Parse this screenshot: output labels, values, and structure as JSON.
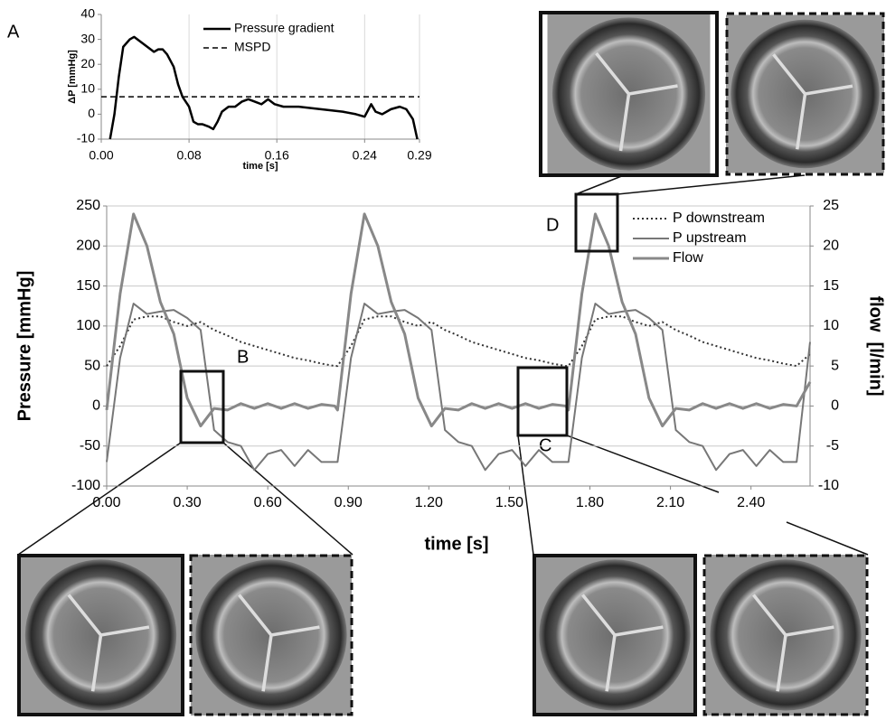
{
  "panel_labels": [
    "A",
    "B",
    "C",
    "D"
  ],
  "chart_data": [
    {
      "type": "line",
      "xlabel": "time [s]",
      "ylabel": "ΔP [mmHg]",
      "xlim": [
        0,
        0.29
      ],
      "ylim": [
        -10,
        40
      ],
      "xticks": [
        {
          "value": 0,
          "label": "0.00"
        },
        {
          "value": 0.08,
          "label": "0.08"
        },
        {
          "value": 0.16,
          "label": "0.16"
        },
        {
          "value": 0.24,
          "label": "0.24"
        },
        {
          "value": 0.29,
          "label": "0.29"
        }
      ],
      "yticks": [
        -10,
        0,
        10,
        20,
        30,
        40
      ],
      "grid": "x",
      "legend": "top-center",
      "series": [
        {
          "name": "Pressure gradient",
          "color": "#000000",
          "style": "solid",
          "x": [
            0.008,
            0.012,
            0.016,
            0.02,
            0.026,
            0.03,
            0.036,
            0.042,
            0.048,
            0.052,
            0.056,
            0.06,
            0.066,
            0.07,
            0.074,
            0.08,
            0.084,
            0.088,
            0.092,
            0.098,
            0.102,
            0.106,
            0.11,
            0.116,
            0.122,
            0.128,
            0.134,
            0.14,
            0.146,
            0.152,
            0.158,
            0.166,
            0.18,
            0.2,
            0.22,
            0.232,
            0.24,
            0.246,
            0.25,
            0.256,
            0.264,
            0.272,
            0.278,
            0.284,
            0.288
          ],
          "values": [
            -10,
            0,
            15,
            27,
            30,
            31,
            29,
            27,
            25,
            26,
            26,
            24,
            19,
            12,
            7,
            3,
            -3,
            -4,
            -4,
            -5,
            -6,
            -3,
            1,
            3,
            3,
            5,
            6,
            5,
            4,
            6,
            4,
            3,
            3,
            2,
            1,
            0,
            -1,
            4,
            1,
            0,
            2,
            3,
            2,
            -2,
            -10
          ]
        },
        {
          "name": "MSPD",
          "color": "#000000",
          "style": "dashed",
          "x": [
            0,
            0.29
          ],
          "values": [
            7,
            7
          ]
        }
      ]
    },
    {
      "type": "line",
      "xlabel": "time [s]",
      "ylabel": "Pressure [mmHg]",
      "y2label": "flow  [l/min]",
      "xlim": [
        0,
        2.62
      ],
      "ylim": [
        -100,
        250
      ],
      "y2lim": [
        -10,
        25
      ],
      "xticks": [
        {
          "value": 0,
          "label": "0.00"
        },
        {
          "value": 0.3,
          "label": "0.30"
        },
        {
          "value": 0.6,
          "label": "0.60"
        },
        {
          "value": 0.9,
          "label": "0.90"
        },
        {
          "value": 1.2,
          "label": "1.20"
        },
        {
          "value": 1.5,
          "label": "1.50"
        },
        {
          "value": 1.8,
          "label": "1.80"
        },
        {
          "value": 2.1,
          "label": "2.10"
        },
        {
          "value": 2.4,
          "label": "2.40"
        }
      ],
      "yticks": [
        -100,
        -50,
        0,
        50,
        100,
        150,
        200,
        250
      ],
      "y2ticks": [
        -10,
        -5,
        0,
        5,
        10,
        15,
        20,
        25
      ],
      "grid": "y",
      "legend": "top-right",
      "x": [
        0,
        0.05,
        0.1,
        0.15,
        0.2,
        0.25,
        0.3,
        0.35,
        0.4,
        0.45,
        0.5,
        0.55,
        0.6,
        0.65,
        0.7,
        0.75,
        0.8,
        0.85,
        0.86,
        0.91,
        0.96,
        1.01,
        1.06,
        1.11,
        1.16,
        1.21,
        1.26,
        1.31,
        1.36,
        1.41,
        1.46,
        1.51,
        1.56,
        1.61,
        1.66,
        1.71,
        1.72,
        1.77,
        1.82,
        1.87,
        1.92,
        1.97,
        2.02,
        2.07,
        2.12,
        2.17,
        2.22,
        2.27,
        2.32,
        2.37,
        2.42,
        2.47,
        2.52,
        2.57,
        2.62
      ],
      "series": [
        {
          "name": "P downstream",
          "color": "#333333",
          "style": "dotted",
          "values": [
            50,
            75,
            108,
            112,
            112,
            105,
            100,
            105,
            95,
            88,
            80,
            75,
            70,
            65,
            60,
            57,
            53,
            50,
            50,
            75,
            108,
            112,
            112,
            105,
            100,
            105,
            95,
            88,
            80,
            75,
            70,
            65,
            60,
            57,
            53,
            50,
            50,
            75,
            108,
            112,
            112,
            105,
            100,
            105,
            95,
            88,
            80,
            75,
            70,
            65,
            60,
            57,
            53,
            50,
            65
          ]
        },
        {
          "name": "P upstream",
          "color": "#777777",
          "style": "solid",
          "values": [
            -70,
            60,
            128,
            115,
            118,
            120,
            110,
            95,
            -30,
            -45,
            -50,
            -80,
            -60,
            -55,
            -75,
            -55,
            -70,
            -70,
            -70,
            60,
            128,
            115,
            118,
            120,
            110,
            95,
            -30,
            -45,
            -50,
            -80,
            -60,
            -55,
            -75,
            -55,
            -70,
            -70,
            -70,
            60,
            128,
            115,
            118,
            120,
            110,
            95,
            -30,
            -45,
            -50,
            -80,
            -60,
            -55,
            -75,
            -55,
            -70,
            -70,
            80
          ]
        },
        {
          "name": "Flow",
          "color": "#888888",
          "style": "solid",
          "axis": "y2",
          "values": [
            -0.5,
            14,
            24,
            20,
            13,
            9,
            1,
            -2.5,
            -0.3,
            -0.5,
            0.3,
            -0.3,
            0.3,
            -0.3,
            0.3,
            -0.3,
            0.2,
            0,
            -0.5,
            14,
            24,
            20,
            13,
            9,
            1,
            -2.5,
            -0.3,
            -0.5,
            0.3,
            -0.3,
            0.3,
            -0.3,
            0.3,
            -0.3,
            0.2,
            0,
            -0.5,
            14,
            24,
            20,
            13,
            9,
            1,
            -2.5,
            -0.3,
            -0.5,
            0.3,
            -0.3,
            0.3,
            -0.3,
            0.3,
            -0.3,
            0.2,
            0,
            3
          ]
        }
      ]
    }
  ]
}
